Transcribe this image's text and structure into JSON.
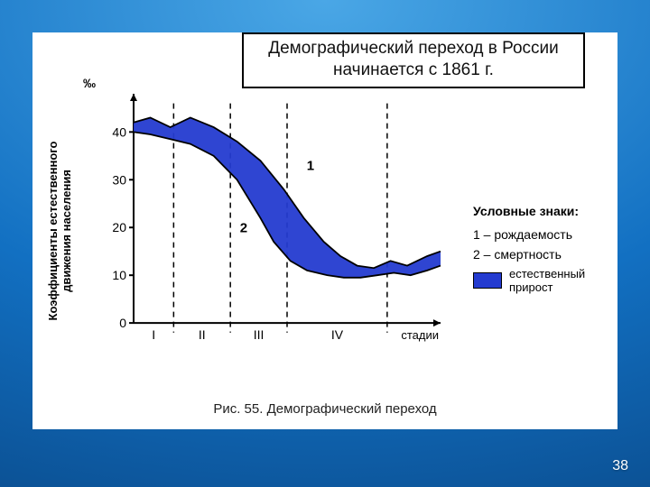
{
  "slide": {
    "number": "38"
  },
  "header": {
    "line1": "Демографический переход в России",
    "line2": "начинается с 1861 г."
  },
  "caption": "Рис. 55. Демографический переход",
  "chart": {
    "type": "area-between-two-lines",
    "permille_label": "‰",
    "yaxis_label": "Коэффициенты естественного\nдвижения населения",
    "xaxis_label": "стадии",
    "x_range": [
      0,
      4.6
    ],
    "y_range": [
      -3,
      48
    ],
    "ytick_values": [
      0,
      10,
      20,
      30,
      40
    ],
    "xtick_values": [
      1,
      2,
      3,
      4
    ],
    "xtick_labels": [
      "I",
      "II",
      "III",
      "IV"
    ],
    "stage_boundaries_x": [
      0.6,
      1.45,
      2.3,
      3.8
    ],
    "series": {
      "birth": {
        "label_number": "1",
        "color": "#243bd0",
        "label_pos": {
          "x": 2.65,
          "y": 32
        },
        "points": [
          {
            "x": 0.0,
            "y": 42
          },
          {
            "x": 0.25,
            "y": 43
          },
          {
            "x": 0.55,
            "y": 41
          },
          {
            "x": 0.85,
            "y": 43
          },
          {
            "x": 1.2,
            "y": 41
          },
          {
            "x": 1.55,
            "y": 38
          },
          {
            "x": 1.9,
            "y": 34
          },
          {
            "x": 2.25,
            "y": 28
          },
          {
            "x": 2.55,
            "y": 22
          },
          {
            "x": 2.85,
            "y": 17
          },
          {
            "x": 3.1,
            "y": 14
          },
          {
            "x": 3.35,
            "y": 12
          },
          {
            "x": 3.6,
            "y": 11.5
          },
          {
            "x": 3.85,
            "y": 13
          },
          {
            "x": 4.1,
            "y": 12
          },
          {
            "x": 4.4,
            "y": 14
          },
          {
            "x": 4.6,
            "y": 15
          }
        ]
      },
      "death": {
        "label_number": "2",
        "color": "#243bd0",
        "label_pos": {
          "x": 1.65,
          "y": 19
        },
        "points": [
          {
            "x": 0.0,
            "y": 40
          },
          {
            "x": 0.25,
            "y": 39.5
          },
          {
            "x": 0.55,
            "y": 38.5
          },
          {
            "x": 0.85,
            "y": 37.5
          },
          {
            "x": 1.2,
            "y": 35
          },
          {
            "x": 1.55,
            "y": 30
          },
          {
            "x": 1.9,
            "y": 22
          },
          {
            "x": 2.1,
            "y": 17
          },
          {
            "x": 2.35,
            "y": 13
          },
          {
            "x": 2.6,
            "y": 11
          },
          {
            "x": 2.9,
            "y": 10
          },
          {
            "x": 3.15,
            "y": 9.5
          },
          {
            "x": 3.4,
            "y": 9.5
          },
          {
            "x": 3.65,
            "y": 10
          },
          {
            "x": 3.9,
            "y": 10.5
          },
          {
            "x": 4.15,
            "y": 10
          },
          {
            "x": 4.4,
            "y": 11
          },
          {
            "x": 4.6,
            "y": 12
          }
        ]
      }
    },
    "fill_color": "#243bd0",
    "axis_color": "#000000",
    "bg_color": "#ffffff",
    "tick_fontsize": 14,
    "dash_pattern": "6 5"
  },
  "legend": {
    "title": "Условные знаки:",
    "item1": "1 – рождаемость",
    "item2": "2 – смертность",
    "swatch_text": "естественный\nприрост",
    "swatch_color": "#243bd0"
  },
  "colors": {
    "slide_bg_sample": "#1270c2",
    "panel_bg": "#ffffff"
  }
}
